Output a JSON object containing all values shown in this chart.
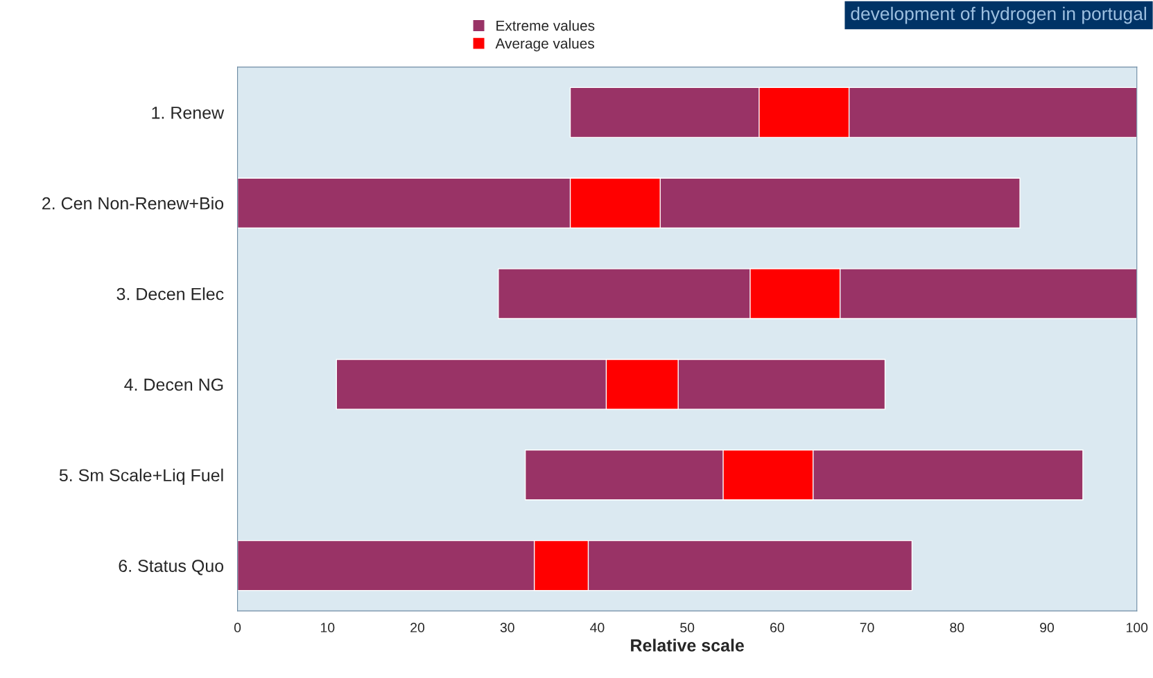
{
  "chart_data": {
    "type": "bar",
    "orientation": "horizontal",
    "xlabel": "Relative scale",
    "categories": [
      "1. Renew",
      "2. Cen Non-Renew+Bio",
      "3. Decen Elec",
      "4. Decen NG",
      "5. Sm Scale+Liq Fuel",
      "6. Status Quo"
    ],
    "series": [
      {
        "name": "Extreme values",
        "color": "#993366",
        "base": [
          37,
          0,
          29,
          11,
          32,
          0
        ],
        "values": [
          63,
          87,
          71,
          61,
          62,
          75
        ]
      },
      {
        "name": "Average values",
        "color": "#ff0000",
        "base": [
          58,
          37,
          57,
          41,
          54,
          33
        ],
        "values": [
          10,
          10,
          10,
          8,
          10,
          6
        ]
      }
    ],
    "xlim": [
      0,
      100
    ],
    "xticks": [
      0,
      10,
      20,
      30,
      40,
      50,
      60,
      70,
      80,
      90,
      100
    ],
    "legend": "top",
    "grid": false,
    "annotations": [
      "development of hydrogen in portugal"
    ]
  }
}
